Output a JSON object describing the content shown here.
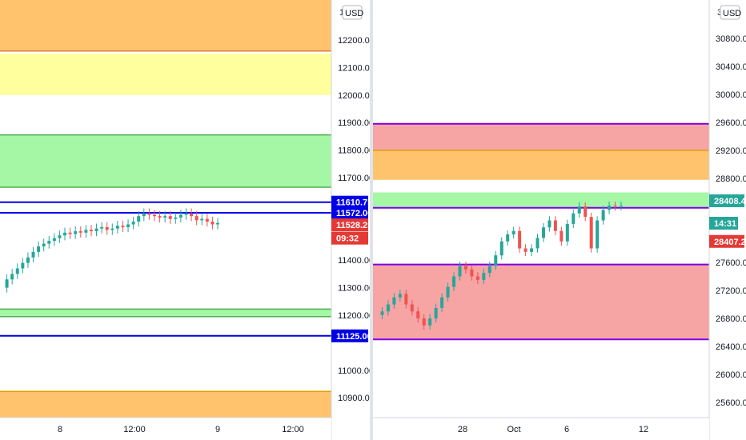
{
  "colors": {
    "orange_zone": "#ffc36e",
    "yellow_zone": "#ffff9e",
    "green_zone": "#a5f7a5",
    "red_zone": "#f7a4a4",
    "blue_line": "#0000e6",
    "purple_line": "#7b00e6",
    "candle_up": "#26a69a",
    "candle_down": "#ef5350",
    "price_red": "#e53935",
    "price_green": "#26a69a",
    "axis_text": "#131722"
  },
  "left_chart": {
    "currency": "USD",
    "price_ticks": [
      "12200.00",
      "12100.00",
      "12000.00",
      "11900.00",
      "11800.00",
      "11700.00",
      "11400.00",
      "11300.00",
      "11200.00",
      "11000.00",
      "10900.00"
    ],
    "partial_top_tick": "12",
    "time_ticks": [
      "8",
      "12:00",
      "9",
      "12:00"
    ],
    "labels": {
      "line_high": "11610.75",
      "line_mid": "11572.00",
      "last_price": "11528.25",
      "countdown": "09:32",
      "line_low": "11125.00"
    },
    "levels": {
      "orange_top": [
        12160,
        12390
      ],
      "yellow": [
        12000,
        12150
      ],
      "green_upper": [
        11665,
        11855
      ],
      "green_lower": [
        11195,
        11222
      ],
      "orange_bottom": [
        10790,
        10923
      ],
      "blue_lines": [
        11610.75,
        11572.0,
        11125.0
      ]
    },
    "candles_close_path": [
      11300,
      11330,
      11350,
      11370,
      11390,
      11410,
      11430,
      11450,
      11460,
      11470,
      11480,
      11490,
      11500,
      11495,
      11505,
      11500,
      11510,
      11505,
      11515,
      11520,
      11510,
      11515,
      11525,
      11520,
      11530,
      11540,
      11560,
      11570,
      11565,
      11560,
      11555,
      11560,
      11550,
      11555,
      11565,
      11570,
      11560,
      11545,
      11550,
      11540,
      11530,
      11535
    ]
  },
  "right_chart": {
    "currency": "USD",
    "price_ticks": [
      "30800.00",
      "30400.00",
      "30000.00",
      "29600.00",
      "29200.00",
      "28800.00",
      "27600.00",
      "27200.00",
      "26800.00",
      "26400.00",
      "26000.00",
      "25600.00"
    ],
    "partial_top_tick": "3",
    "time_ticks": [
      "28",
      "Oct",
      "6",
      "12"
    ],
    "labels": {
      "green_price": "28408.4",
      "countdown": "14:31",
      "red_price": "28407.2"
    },
    "levels": {
      "red_upper": [
        29200,
        29580
      ],
      "orange": [
        28780,
        29200
      ],
      "green": [
        28380,
        28600
      ],
      "red_lower": [
        26500,
        27570
      ],
      "purple_lines": [
        29580,
        27570,
        26500,
        28380
      ]
    },
    "candles_close_path": [
      26850,
      26900,
      27000,
      27100,
      27150,
      27000,
      26900,
      26800,
      26700,
      26800,
      26950,
      27100,
      27250,
      27400,
      27550,
      27500,
      27400,
      27350,
      27450,
      27550,
      27700,
      27900,
      28000,
      28050,
      27800,
      27750,
      27800,
      27950,
      28100,
      28200,
      28050,
      27900,
      28150,
      28300,
      28400,
      28250,
      27800,
      28200,
      28350,
      28410,
      28400,
      28408
    ]
  }
}
